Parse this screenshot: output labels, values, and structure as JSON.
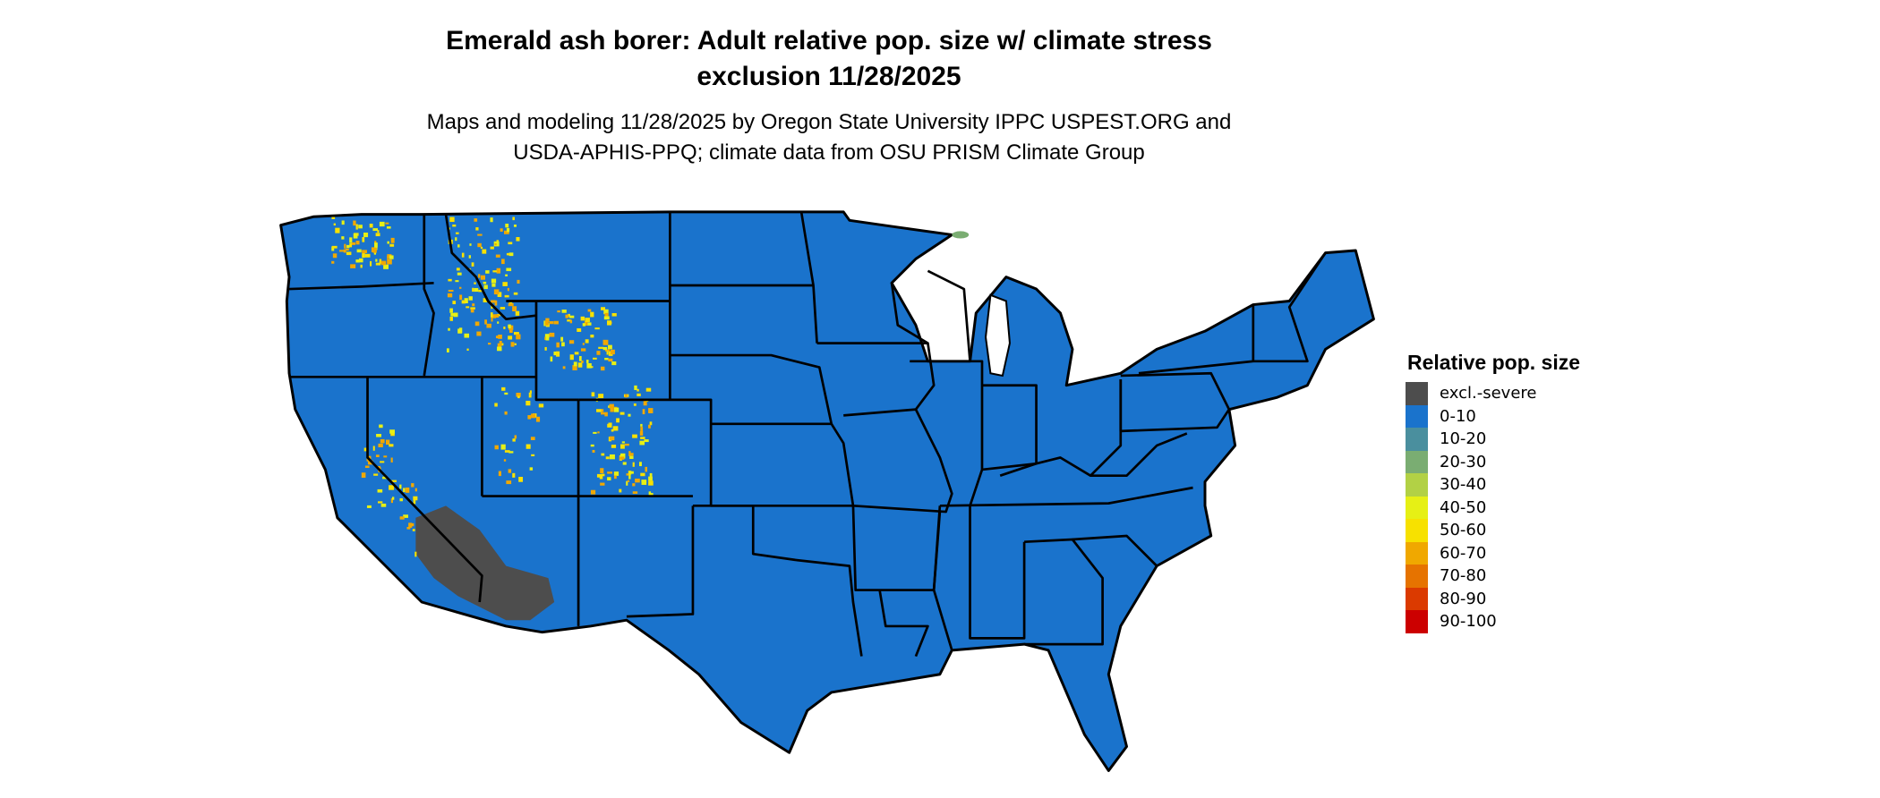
{
  "title": {
    "line1": "Emerald ash borer: Adult relative pop. size w/ climate stress",
    "line2": "exclusion 11/28/2025"
  },
  "subtitle": {
    "line1": "Maps and modeling 11/28/2025 by Oregon State University IPPC USPEST.ORG and",
    "line2": "USDA-APHIS-PPQ; climate data from OSU PRISM Climate Group"
  },
  "map": {
    "region": "Contiguous United States",
    "dominant_class": "0-10",
    "state_border_color": "#000000"
  },
  "legend": {
    "title": "Relative pop. size",
    "items": [
      {
        "label": "excl.-severe",
        "color": "#4d4d4d"
      },
      {
        "label": "0-10",
        "color": "#1a73cc"
      },
      {
        "label": "10-20",
        "color": "#4a8f9e"
      },
      {
        "label": "20-30",
        "color": "#7aad72"
      },
      {
        "label": "30-40",
        "color": "#b2d145"
      },
      {
        "label": "40-50",
        "color": "#e6f015"
      },
      {
        "label": "50-60",
        "color": "#f7e100"
      },
      {
        "label": "60-70",
        "color": "#f0a800"
      },
      {
        "label": "70-80",
        "color": "#e67300"
      },
      {
        "label": "80-90",
        "color": "#db3a00"
      },
      {
        "label": "90-100",
        "color": "#cc0000"
      }
    ]
  }
}
